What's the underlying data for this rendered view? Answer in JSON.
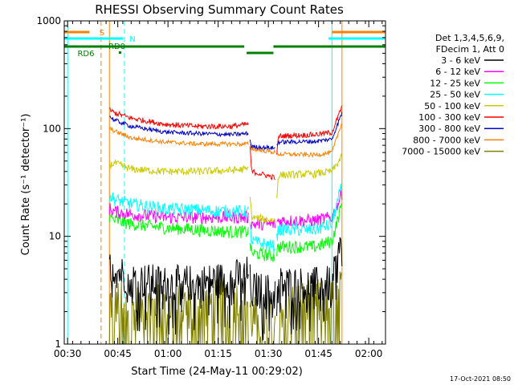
{
  "chart_data": {
    "type": "line",
    "title": "RHESSI Observing Summary Count Rates",
    "xlabel": "Start Time (24-May-11 00:29:02)",
    "ylabel": "Count Rate (s⁻¹ detector⁻¹)",
    "yscale": "log",
    "ylim": [
      1,
      1000
    ],
    "xlim_minutes": [
      0,
      96
    ],
    "x_ticks": [
      {
        "min": 1,
        "label": "00:30"
      },
      {
        "min": 16,
        "label": "00:45"
      },
      {
        "min": 31,
        "label": "01:00"
      },
      {
        "min": 46,
        "label": "01:15"
      },
      {
        "min": 61,
        "label": "01:30"
      },
      {
        "min": 76,
        "label": "01:45"
      },
      {
        "min": 91,
        "label": "02:00"
      }
    ],
    "y_ticks": [
      {
        "value": 1,
        "label": "1"
      },
      {
        "value": 10,
        "label": "10"
      },
      {
        "value": 100,
        "label": "100"
      },
      {
        "value": 1000,
        "label": "1000"
      }
    ],
    "legend_header": [
      "Det 1,3,4,5,6,9,",
      "FDecim 1, Att 0"
    ],
    "legend_position": "right",
    "flags": [
      {
        "label": "S",
        "color": "#ff8000"
      },
      {
        "label": "N",
        "color": "#00ffff"
      },
      {
        "label": "RD0",
        "color": "#008000"
      },
      {
        "label": "RD6",
        "color": "#008000"
      }
    ],
    "vertical_markers": [
      {
        "min": 1,
        "color": "#00ffff",
        "style": "solid"
      },
      {
        "min": 11,
        "color": "#ff8000",
        "style": "dashed"
      },
      {
        "min": 13.5,
        "color": "#ff8000",
        "style": "solid"
      },
      {
        "min": 18,
        "color": "#00ffff",
        "style": "dashed"
      },
      {
        "min": 80,
        "color": "#00ffff",
        "style": "solid"
      },
      {
        "min": 83,
        "color": "#ff8000",
        "style": "solid"
      },
      {
        "min": 96,
        "color": "#00ffff",
        "style": "dashed"
      }
    ],
    "x_segments": [
      {
        "start": 13.5,
        "end": 55,
        "gap_after": true
      },
      {
        "start": 55.5,
        "end": 63
      },
      {
        "start": 63.5,
        "end": 83
      }
    ],
    "series": [
      {
        "name": "3 - 6 keV",
        "color": "#000000",
        "points": [
          [
            13.5,
            6
          ],
          [
            15,
            5
          ],
          [
            20,
            4
          ],
          [
            30,
            3.6
          ],
          [
            40,
            3.7
          ],
          [
            50,
            4
          ],
          [
            55,
            4.5
          ],
          [
            56,
            3.2
          ],
          [
            63,
            3
          ],
          [
            64,
            3.6
          ],
          [
            75,
            3.5
          ],
          [
            80,
            3.6
          ],
          [
            83,
            9
          ]
        ]
      },
      {
        "name": "6 - 12 keV",
        "color": "#ff00ff",
        "points": [
          [
            13.5,
            18
          ],
          [
            15,
            17
          ],
          [
            20,
            16
          ],
          [
            30,
            15
          ],
          [
            40,
            15
          ],
          [
            50,
            15
          ],
          [
            55,
            15
          ],
          [
            56,
            13
          ],
          [
            63,
            13
          ],
          [
            64,
            14
          ],
          [
            75,
            14
          ],
          [
            80,
            15
          ],
          [
            83,
            25
          ]
        ]
      },
      {
        "name": "12 - 25 keV",
        "color": "#00ff00",
        "points": [
          [
            13.5,
            15
          ],
          [
            15,
            14
          ],
          [
            20,
            13
          ],
          [
            30,
            12
          ],
          [
            40,
            11.5
          ],
          [
            50,
            11
          ],
          [
            55,
            11
          ],
          [
            56,
            7
          ],
          [
            63,
            6.5
          ],
          [
            64,
            8
          ],
          [
            75,
            8
          ],
          [
            80,
            9
          ],
          [
            83,
            20
          ]
        ]
      },
      {
        "name": "25 - 50 keV",
        "color": "#00ffff",
        "points": [
          [
            13.5,
            24
          ],
          [
            15,
            22
          ],
          [
            20,
            20
          ],
          [
            30,
            18
          ],
          [
            40,
            17.5
          ],
          [
            50,
            17
          ],
          [
            55,
            17
          ],
          [
            56,
            9
          ],
          [
            63,
            8
          ],
          [
            64,
            11.5
          ],
          [
            75,
            11.5
          ],
          [
            80,
            13
          ],
          [
            83,
            30
          ]
        ]
      },
      {
        "name": "50 - 100 keV",
        "color": "#cccc00",
        "points": [
          [
            13.5,
            45
          ],
          [
            15,
            48
          ],
          [
            20,
            42
          ],
          [
            30,
            40
          ],
          [
            40,
            40
          ],
          [
            50,
            41
          ],
          [
            55,
            42
          ],
          [
            56,
            15
          ],
          [
            63,
            14
          ],
          [
            64,
            37
          ],
          [
            75,
            38
          ],
          [
            80,
            40
          ],
          [
            83,
            55
          ]
        ]
      },
      {
        "name": "100 - 300 keV",
        "color": "#ff0000",
        "points": [
          [
            13.5,
            150
          ],
          [
            15,
            140
          ],
          [
            20,
            125
          ],
          [
            30,
            110
          ],
          [
            40,
            105
          ],
          [
            50,
            105
          ],
          [
            55,
            110
          ],
          [
            56,
            40
          ],
          [
            63,
            35
          ],
          [
            64,
            85
          ],
          [
            75,
            88
          ],
          [
            80,
            92
          ],
          [
            83,
            160
          ]
        ]
      },
      {
        "name": "300 - 800 keV",
        "color": "#0000cc",
        "points": [
          [
            13.5,
            130
          ],
          [
            15,
            120
          ],
          [
            20,
            105
          ],
          [
            30,
            93
          ],
          [
            40,
            90
          ],
          [
            50,
            88
          ],
          [
            55,
            90
          ],
          [
            56,
            68
          ],
          [
            63,
            66
          ],
          [
            64,
            75
          ],
          [
            75,
            76
          ],
          [
            80,
            80
          ],
          [
            83,
            140
          ]
        ]
      },
      {
        "name": "800 - 7000 keV",
        "color": "#ff8000",
        "points": [
          [
            13.5,
            100
          ],
          [
            15,
            95
          ],
          [
            20,
            82
          ],
          [
            30,
            75
          ],
          [
            40,
            72
          ],
          [
            50,
            72
          ],
          [
            55,
            72
          ],
          [
            56,
            65
          ],
          [
            63,
            60
          ],
          [
            64,
            58
          ],
          [
            75,
            57
          ],
          [
            80,
            60
          ],
          [
            83,
            115
          ]
        ]
      },
      {
        "name": "7000 - 15000 keV",
        "color": "#808000",
        "points": [
          [
            13.5,
            2.5
          ],
          [
            20,
            2.2
          ],
          [
            30,
            2.2
          ],
          [
            40,
            2.3
          ],
          [
            50,
            2.5
          ],
          [
            55,
            2.5
          ],
          [
            56,
            1.7
          ],
          [
            63,
            1.7
          ],
          [
            64,
            2.2
          ],
          [
            75,
            2.4
          ],
          [
            80,
            2.5
          ],
          [
            83,
            3
          ]
        ]
      }
    ]
  },
  "footer": {
    "timestamp": "17-Oct-2021 08:50"
  }
}
